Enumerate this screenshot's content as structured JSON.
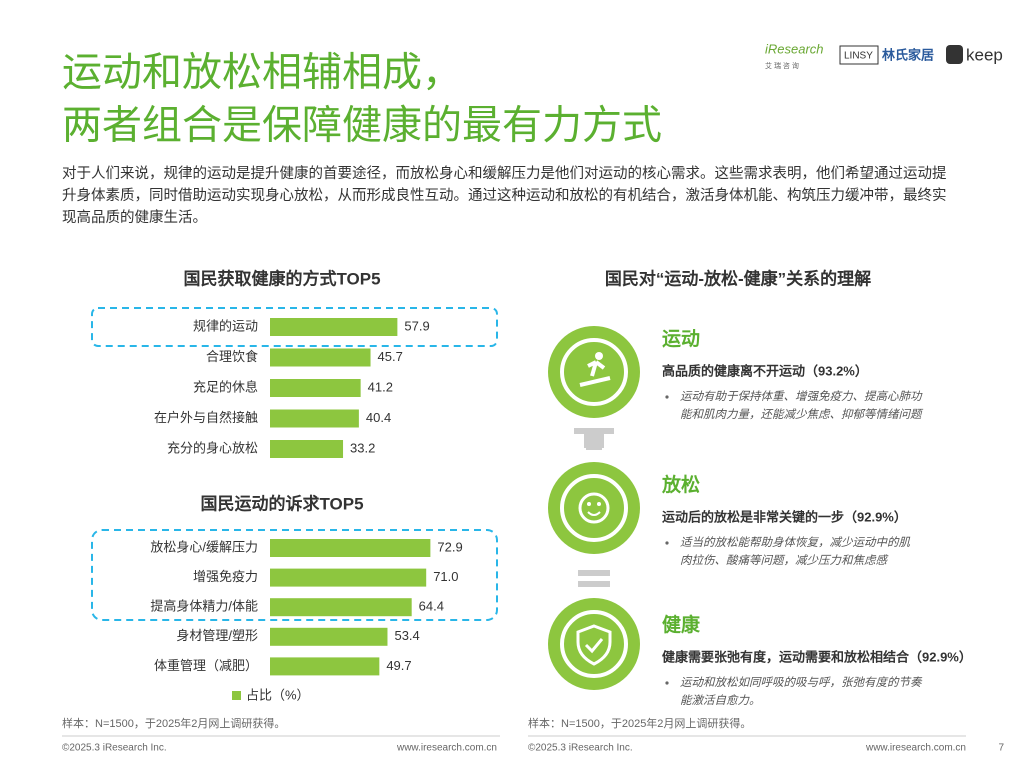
{
  "header": {
    "title": [
      "运动和放松相辅相成，",
      "两者组合是保障健康的最有力方式"
    ],
    "intro": "对于人们来说，规律的运动是提升健康的首要途径，而放松身心和缓解压力是他们对运动的核心需求。这些需求表明，他们希望通过运动提升身体素质，同时借助运动实现身心放松，从而形成良性互动。通过这种运动和放松的有机结合，激活身体机能、构筑压力缓冲带，最终实现高品质的健康生活。",
    "logos": [
      "iResearch",
      "艾 瑞 咨 询",
      "LINSY",
      "林氏家居",
      "keep"
    ]
  },
  "chart_data": [
    {
      "type": "bar",
      "orientation": "horizontal",
      "title": "国民获取健康的方式TOP5",
      "categories": [
        "规律的运动",
        "合理饮食",
        "充足的休息",
        "在户外与自然接触",
        "充分的身心放松"
      ],
      "values": [
        57.9,
        45.7,
        41.2,
        40.4,
        33.2
      ],
      "color": "#8dc63f"
    },
    {
      "type": "bar",
      "orientation": "horizontal",
      "title": "国民运动的诉求TOP5",
      "categories": [
        "放松身心/缓解压力",
        "增强免疫力",
        "提高身体精力/体能",
        "身材管理/塑形",
        "体重管理（减肥）"
      ],
      "series": [
        {
          "name": "占比（%）",
          "color": "#8dc63f",
          "values": [
            72.9,
            71.0,
            64.4,
            53.4,
            49.7
          ],
          "value_labels": [
            "72.9",
            "71.0",
            "64.4",
            "53.4",
            "49.7"
          ]
        }
      ]
    }
  ],
  "relations": {
    "title": "国民对“运动-放松-健康”关系的理解",
    "items": [
      {
        "heading": "运动",
        "subtitle": "高品质的健康离不开运动（93.2%）",
        "bullets": [
          "运动有助于保持体重、增强免疫力、提高心肺功",
          "能和肌肉力量，还能减少焦虑、抑郁等情绪问题"
        ]
      },
      {
        "heading": "放松",
        "subtitle": "运动后的放松是非常关键的一步（92.9%）",
        "bullets": [
          "适当的放松能帮助身体恢复，减少运动中的肌",
          "肉拉伤、酸痛等问题，减少压力和焦虑感"
        ]
      },
      {
        "heading": "健康",
        "subtitle": "健康需要张弛有度，运动需要和放松相结合（92.9%）",
        "bullets": [
          "运动和放松如同呼吸的吸与呼，张弛有度的节奏",
          "能激活自愈力。"
        ]
      }
    ]
  },
  "footer": {
    "notes": [
      "样本：N=1500，于2025年2月网上调研获得。",
      "样本：N=1500，于2025年2月网上调研获得。"
    ],
    "copyright": [
      "©2025.3 iResearch Inc.",
      "©2025.3 iResearch Inc."
    ],
    "url": [
      "www.iresearch.com.cn",
      "www.iresearch.com.cn"
    ],
    "page": "7"
  }
}
